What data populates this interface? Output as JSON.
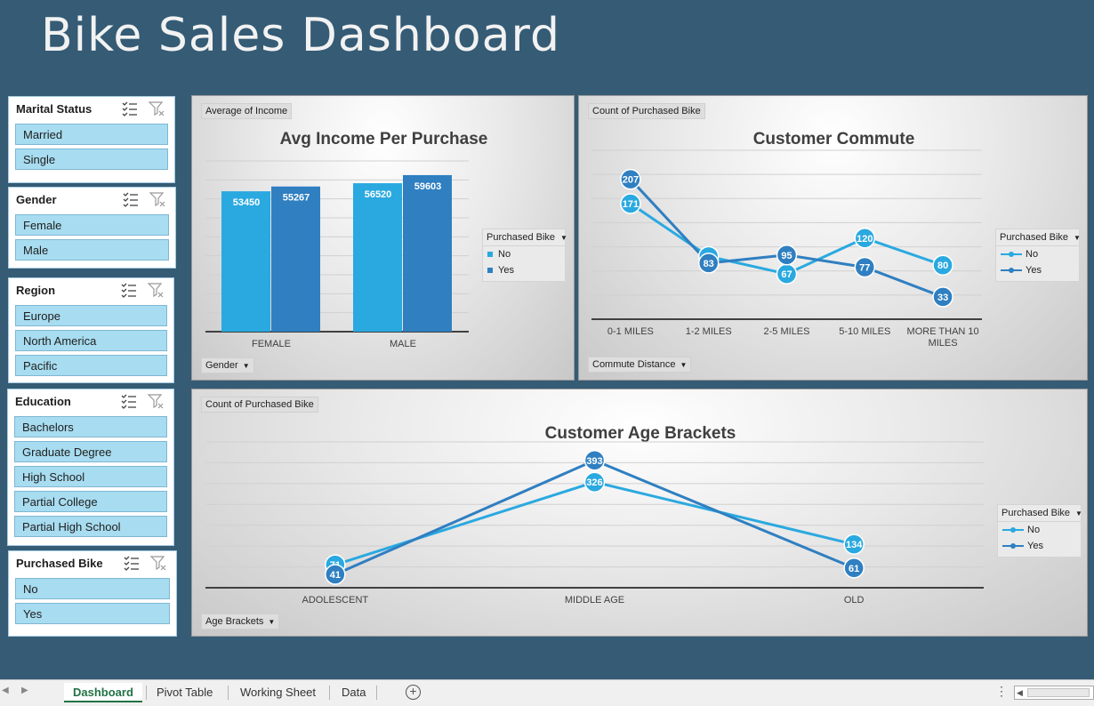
{
  "title": "Bike Sales Dashboard",
  "slicers": [
    {
      "title": "Marital Status",
      "items": [
        "Married",
        "Single"
      ]
    },
    {
      "title": "Gender",
      "items": [
        "Female",
        "Male"
      ]
    },
    {
      "title": "Region",
      "items": [
        "Europe",
        "North America",
        "Pacific"
      ]
    },
    {
      "title": "Education",
      "items": [
        "Bachelors",
        "Graduate Degree",
        "High School",
        "Partial College",
        "Partial High School"
      ]
    },
    {
      "title": "Purchased Bike",
      "items": [
        "No",
        "Yes"
      ]
    }
  ],
  "colors": {
    "no": "#2aa9e0",
    "yes": "#2f7fc1",
    "background": "#355b75"
  },
  "charts": {
    "income": {
      "field": "Average of Income",
      "axis_field": "Gender",
      "legend_title": "Purchased Bike"
    },
    "commute": {
      "field": "Count of Purchased Bike",
      "axis_field": "Commute Distance",
      "legend_title": "Purchased Bike"
    },
    "age": {
      "field": "Count of Purchased Bike",
      "axis_field": "Age Brackets",
      "legend_title": "Purchased Bike"
    }
  },
  "chart_data": [
    {
      "type": "bar",
      "title": "Avg Income Per Purchase",
      "categories": [
        "FEMALE",
        "MALE"
      ],
      "series": [
        {
          "name": "No",
          "values": [
            53450,
            56520
          ]
        },
        {
          "name": "Yes",
          "values": [
            55267,
            59603
          ]
        }
      ],
      "ylim": [
        0,
        65000
      ]
    },
    {
      "type": "line",
      "title": "Customer Commute",
      "categories": [
        "0-1 MILES",
        "1-2 MILES",
        "2-5 MILES",
        "5-10 MILES",
        "MORE THAN 10 MILES"
      ],
      "series": [
        {
          "name": "No",
          "values": [
            171,
            93,
            67,
            120,
            80
          ]
        },
        {
          "name": "Yes",
          "values": [
            207,
            83,
            95,
            77,
            33
          ]
        }
      ],
      "ylim": [
        0,
        250
      ]
    },
    {
      "type": "line",
      "title": "Customer Age Brackets",
      "categories": [
        "ADOLESCENT",
        "MIDDLE AGE",
        "OLD"
      ],
      "series": [
        {
          "name": "No",
          "values": [
            71,
            326,
            134
          ]
        },
        {
          "name": "Yes",
          "values": [
            41,
            393,
            61
          ]
        }
      ],
      "ylim": [
        0,
        450
      ]
    }
  ],
  "tabs": [
    "Dashboard",
    "Pivot Table",
    "Working Sheet",
    "Data"
  ],
  "active_tab": "Dashboard"
}
